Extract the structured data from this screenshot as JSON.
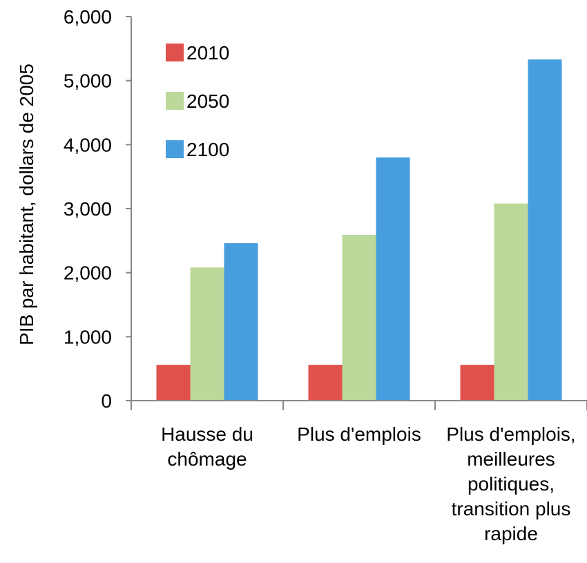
{
  "chart_data": {
    "type": "bar",
    "title": "",
    "xlabel": "",
    "ylabel": "PIB par habitant, dollars de 2005",
    "ylim": [
      0,
      6000
    ],
    "yticks": [
      "0",
      "1,000",
      "2,000",
      "3,000",
      "4,000",
      "5,000",
      "6,000"
    ],
    "categories": [
      [
        "Hausse du",
        "chômage"
      ],
      [
        "Plus d'emplois"
      ],
      [
        "Plus d'emplois,",
        "meilleures",
        "politiques,",
        "transition plus",
        "rapide"
      ]
    ],
    "series": [
      {
        "name": "2010",
        "color": "#e0514d",
        "values": [
          560,
          560,
          560
        ]
      },
      {
        "name": "2050",
        "color": "#bcd89a",
        "values": [
          2080,
          2590,
          3080
        ]
      },
      {
        "name": "2100",
        "color": "#479ede",
        "values": [
          2460,
          3800,
          5330
        ]
      }
    ],
    "legend_position": "top-left",
    "grid": false
  }
}
